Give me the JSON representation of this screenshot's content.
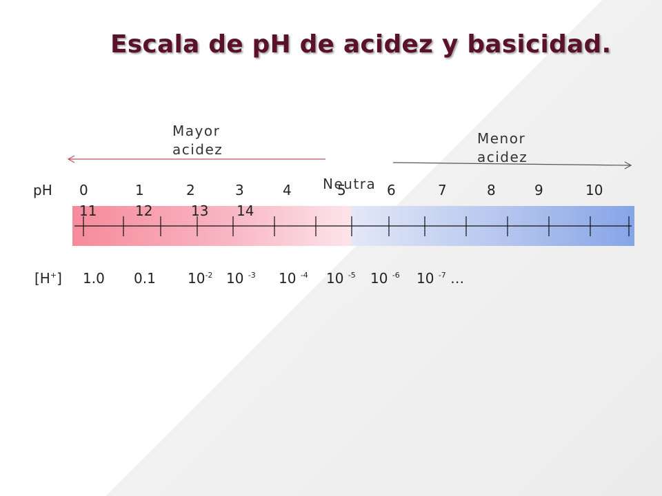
{
  "title": "Escala de pH de acidez y basicidad.",
  "labels": {
    "mayor_acidez": "Mayor acidez",
    "menor_acidez": "Menor acidez",
    "neutra": "Neutra"
  },
  "ph_row": {
    "label": "pH",
    "values": [
      "0",
      "1",
      "2",
      "3",
      "4",
      "5",
      "6",
      "7",
      "8",
      "9",
      "10",
      "11",
      "12",
      "13",
      "14"
    ]
  },
  "h_row": {
    "label": "[H",
    "label_sup": "+",
    "label_close": "]",
    "values": [
      {
        "base": "1.0",
        "exp": ""
      },
      {
        "base": "0.1",
        "exp": ""
      },
      {
        "base": "10",
        "exp": "-2"
      },
      {
        "base": "10 ",
        "exp": "-3"
      },
      {
        "base": "10 ",
        "exp": "-4"
      },
      {
        "base": "10 ",
        "exp": "-5"
      },
      {
        "base": "10 ",
        "exp": "-6"
      },
      {
        "base": "10 ",
        "exp": "-7"
      }
    ],
    "ellipsis": "…"
  },
  "colors": {
    "acid": "#f68a9b",
    "base": "#86a4e6",
    "arrow_left": "#c0505f",
    "arrow_right": "#555555",
    "title": "#5a1228"
  }
}
